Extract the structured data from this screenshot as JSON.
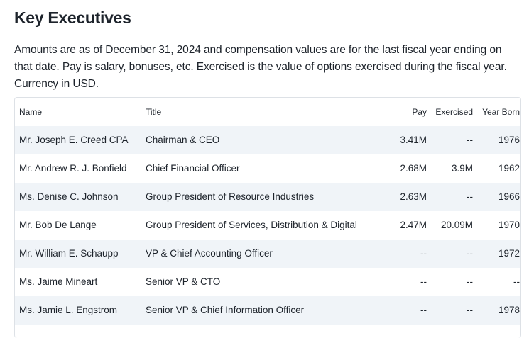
{
  "title": "Key Executives",
  "description": "Amounts are as of December 31, 2024 and compensation values are for the last fiscal year ending on that date. Pay is salary, bonuses, etc. Exercised is the value of options exercised during the fiscal year. Currency in USD.",
  "columns": [
    "Name",
    "Title",
    "Pay",
    "Exercised",
    "Year Born"
  ],
  "rows": [
    [
      "Mr. Joseph E. Creed CPA",
      "Chairman & CEO",
      "3.41M",
      "--",
      "1976"
    ],
    [
      "Mr. Andrew R. J. Bonfield",
      "Chief Financial Officer",
      "2.68M",
      "3.9M",
      "1962"
    ],
    [
      "Ms. Denise C. Johnson",
      "Group President of Resource Industries",
      "2.63M",
      "--",
      "1966"
    ],
    [
      "Mr. Bob De Lange",
      "Group President of Services, Distribution & Digital",
      "2.47M",
      "20.09M",
      "1970"
    ],
    [
      "Mr. William E. Schaupp",
      "VP & Chief Accounting Officer",
      "--",
      "--",
      "1972"
    ],
    [
      "Ms. Jaime Mineart",
      "Senior VP & CTO",
      "--",
      "--",
      "--"
    ],
    [
      "Ms. Jamie L. Engstrom",
      "Senior VP & Chief Information Officer",
      "--",
      "--",
      "1978"
    ]
  ]
}
